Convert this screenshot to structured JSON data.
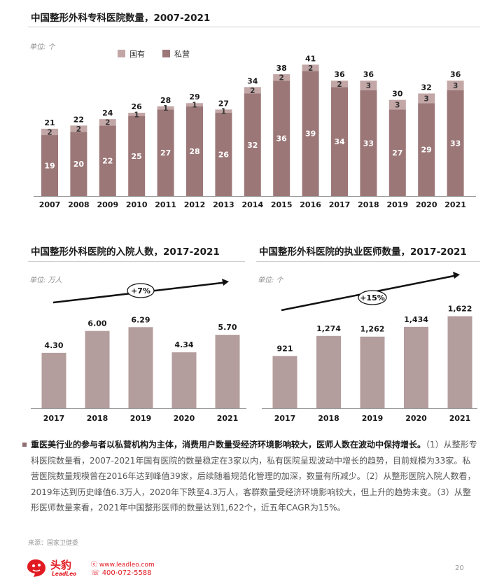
{
  "chart_data": [
    {
      "type": "bar",
      "stacked": true,
      "title": "中国整形外科专科医院数量，2007-2021",
      "unit": "单位:  个",
      "categories": [
        "2007",
        "2008",
        "2009",
        "2010",
        "2011",
        "2012",
        "2013",
        "2014",
        "2015",
        "2016",
        "2017",
        "2018",
        "2019",
        "2020",
        "2021"
      ],
      "series": [
        {
          "name": "私营",
          "color": "#9c7778",
          "values": [
            19,
            20,
            22,
            25,
            27,
            28,
            26,
            32,
            36,
            39,
            34,
            33,
            27,
            29,
            33
          ]
        },
        {
          "name": "国有",
          "color": "#c3a6a6",
          "values": [
            2,
            2,
            2,
            1,
            1,
            1,
            1,
            2,
            2,
            2,
            2,
            3,
            3,
            3,
            3
          ]
        }
      ],
      "totals": [
        21,
        22,
        24,
        26,
        28,
        29,
        27,
        34,
        38,
        41,
        36,
        36,
        30,
        32,
        36
      ],
      "legend": {
        "position": "top-left",
        "items": [
          "国有",
          "私营"
        ]
      },
      "ylim": [
        0,
        45
      ]
    },
    {
      "type": "bar",
      "title": "中国整形外科医院的入院人数，2017-2021",
      "unit": "单位:  万人",
      "categories": [
        "2017",
        "2018",
        "2019",
        "2020",
        "2021"
      ],
      "values": [
        4.3,
        6.0,
        6.29,
        4.34,
        5.7
      ],
      "labels": [
        "4.30",
        "6.00",
        "6.29",
        "4.34",
        "5.70"
      ],
      "color": "#b49d9d",
      "annotation": "+7%",
      "ylim": [
        0,
        7.5
      ]
    },
    {
      "type": "bar",
      "title": "中国整形外科医院的执业医师数量，2017-2021",
      "unit": "单位:  个",
      "categories": [
        "2017",
        "2018",
        "2019",
        "2020",
        "2021"
      ],
      "values": [
        921,
        1274,
        1262,
        1434,
        1622
      ],
      "labels": [
        "921",
        "1,274",
        "1,262",
        "1,434",
        "1,622"
      ],
      "color": "#b49d9d",
      "annotation": "+15%",
      "ylim": [
        0,
        1950
      ]
    }
  ],
  "summary": {
    "lead": "重医美行业的参与者以私营机构为主体，消费用户数量受经济环境影响较大，医师人数在波动中保持增长。",
    "body": "（1）从整形专科医院数量看，2007-2021年国有医院的数量稳定在3家以内，私有医院呈现波动中增长的趋势，目前规模为33家。私营医院数量规模曾在2016年达到峰值39家，后续随着规范化管理的加深，数量有所减少。（2）从整形医院入院人数看，2019年达到历史峰值6.3万人，2020年下跌至4.3万人，客群数量受经济环境影响较大，但上升的趋势未变。（3）从整形医师数量来看，2021年中国整形医师的数量达到1,622个，近五年CAGR为15%。"
  },
  "source": "来源：国家卫健委",
  "footer": {
    "logo_cn": "头豹",
    "logo_en": "LeadLeo",
    "website": "www.leadleo.com",
    "phone": "400-072-5588",
    "page_number": "20"
  },
  "colors": {
    "private": "#9c7778",
    "public": "#c3a6a6",
    "bar": "#b49d9d",
    "brand": "#e21a22"
  }
}
